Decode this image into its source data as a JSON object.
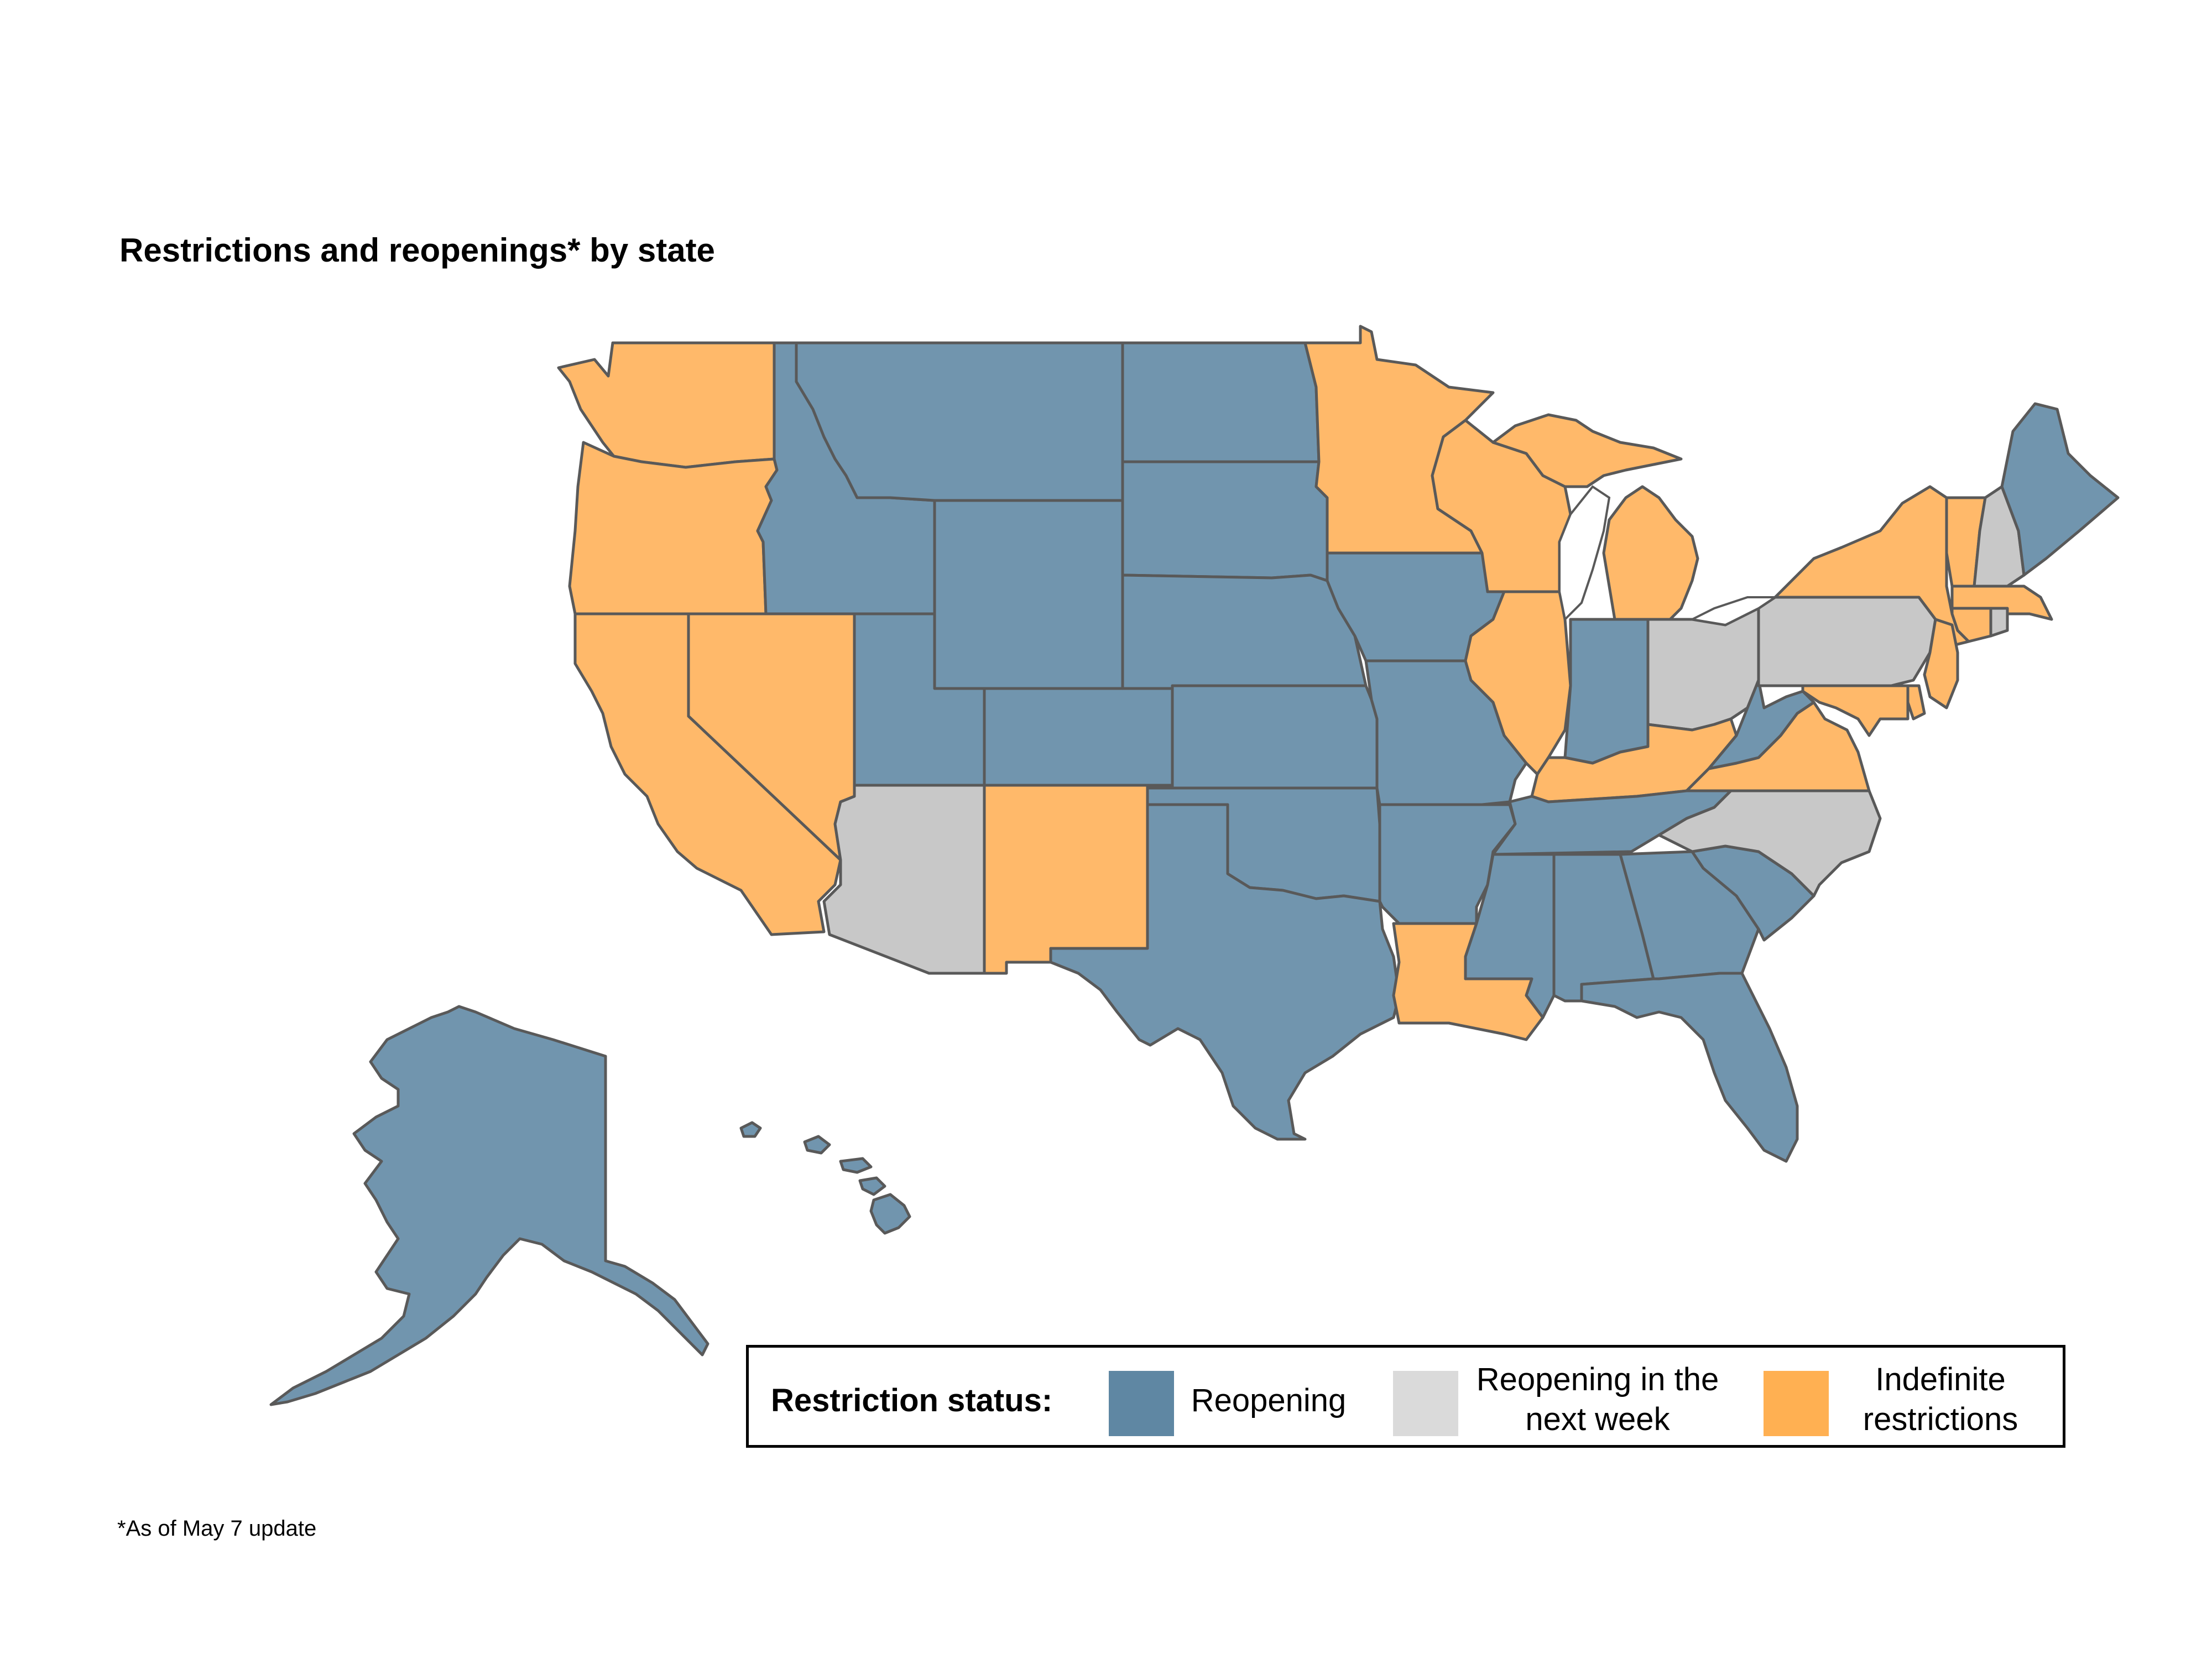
{
  "title": "Restrictions and reopenings* by state",
  "footnote": "*As of May 7 update",
  "legend": {
    "title": "Restriction status:",
    "items": [
      {
        "key": "reopening",
        "label": "Reopening",
        "color": "#5f87a3"
      },
      {
        "key": "next_week",
        "label": "Reopening in the next week",
        "color": "#dadada"
      },
      {
        "key": "indefinite",
        "label": "Indefinite restrictions",
        "color": "#ffb052"
      }
    ]
  },
  "map_colors": {
    "reopening": "#7195ae",
    "next_week": "#c8c8c8",
    "indefinite": "#ffb96a"
  },
  "states": {
    "WA": "indefinite",
    "OR": "indefinite",
    "CA": "indefinite",
    "NV": "indefinite",
    "ID": "reopening",
    "MT": "reopening",
    "WY": "reopening",
    "UT": "reopening",
    "AZ": "next_week",
    "CO": "reopening",
    "NM": "indefinite",
    "ND": "reopening",
    "SD": "reopening",
    "NE": "reopening",
    "KS": "reopening",
    "OK": "reopening",
    "TX": "reopening",
    "MN": "indefinite",
    "IA": "reopening",
    "MO": "reopening",
    "AR": "reopening",
    "LA": "indefinite",
    "WI": "indefinite",
    "IL": "indefinite",
    "MI": "indefinite",
    "IN": "reopening",
    "OH": "next_week",
    "KY": "indefinite",
    "TN": "reopening",
    "MS": "reopening",
    "AL": "reopening",
    "GA": "reopening",
    "FL": "reopening",
    "SC": "reopening",
    "NC": "next_week",
    "VA": "indefinite",
    "WV": "reopening",
    "PA": "next_week",
    "NY": "indefinite",
    "VT": "indefinite",
    "NH": "next_week",
    "ME": "reopening",
    "MA": "indefinite",
    "RI": "next_week",
    "CT": "indefinite",
    "NJ": "indefinite",
    "DE": "indefinite",
    "MD": "indefinite",
    "AK": "reopening",
    "HI": "reopening"
  }
}
